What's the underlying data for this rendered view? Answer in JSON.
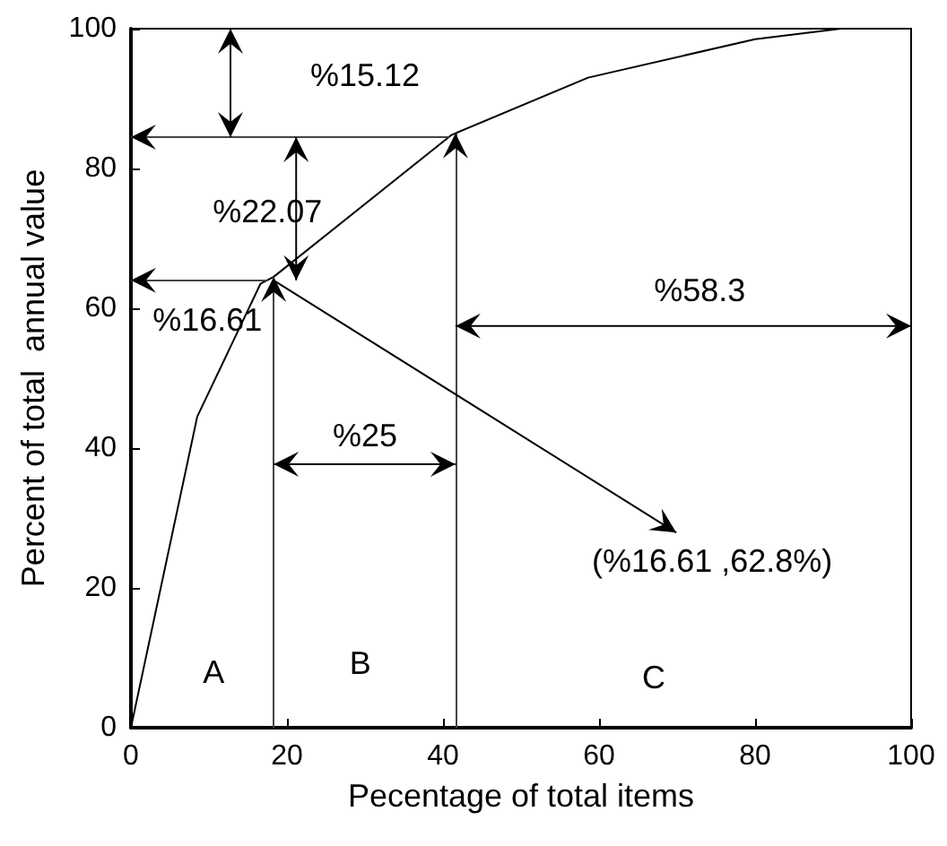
{
  "chart_data": {
    "type": "line",
    "xlabel": "Pecentage of total items",
    "ylabel": "Percent of total  annual value",
    "x": [
      0,
      8.5,
      16.6,
      18.3,
      41.1,
      58.6,
      80,
      91,
      100
    ],
    "series": [
      {
        "color": "#000000",
        "values": [
          0,
          44.5,
          63.5,
          64.5,
          84.8,
          93,
          98.5,
          100,
          100
        ]
      }
    ],
    "xlim": [
      0,
      100
    ],
    "xticks": [
      0,
      20,
      40,
      60,
      80,
      100
    ],
    "ylim": [
      0,
      100
    ],
    "yticks": [
      0,
      20,
      40,
      60,
      80,
      100
    ],
    "grid": false,
    "marker": "none",
    "ref_lines": [
      {
        "axis": "x",
        "value": 18.3
      },
      {
        "axis": "x",
        "value": 41.6
      },
      {
        "axis": "y",
        "value": 64
      },
      {
        "axis": "y",
        "value": 84.5
      }
    ],
    "annotations": [
      "%15.12",
      "%22.07",
      {
        "text": "%16.61",
        "x": 18.3,
        "y": 64.5
      },
      "%25",
      "%58.3",
      "(%16.61 ,62.8%)",
      "A",
      "B",
      "C"
    ]
  }
}
